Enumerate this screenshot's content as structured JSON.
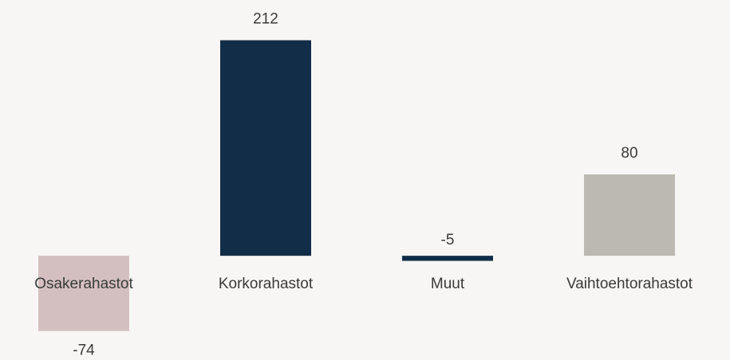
{
  "chart_data": {
    "type": "bar",
    "categories": [
      "Osakerahastot",
      "Korkorahastot",
      "Muut",
      "Vaihtoehtorahastot"
    ],
    "values": [
      -74,
      212,
      -5,
      80
    ],
    "colors": [
      "#d4bfc0",
      "#122d48",
      "#122d48",
      "#bcb9b0"
    ],
    "ylim": [
      -100,
      250
    ]
  }
}
